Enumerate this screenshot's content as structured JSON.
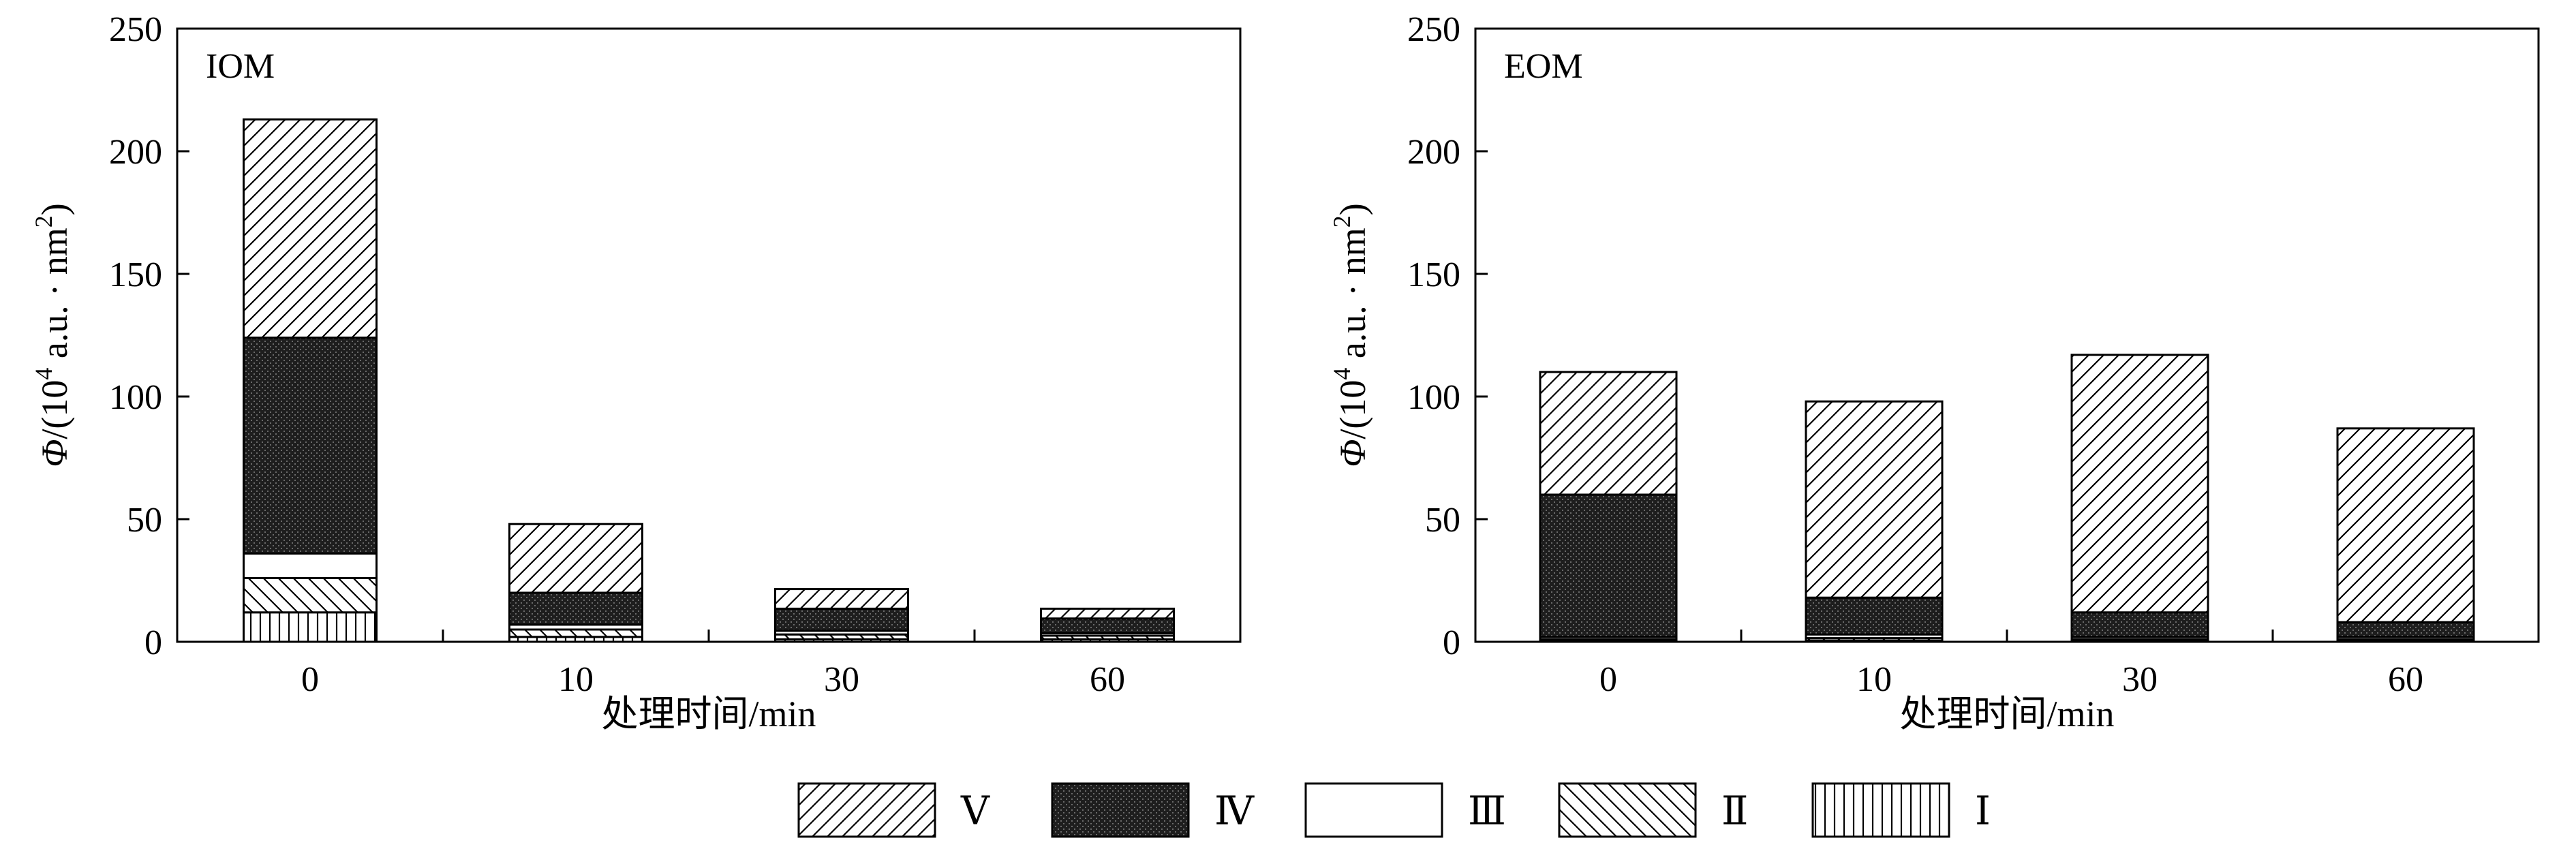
{
  "chart_data": [
    {
      "type": "bar",
      "stacked": true,
      "panel_label": "IOM",
      "categories": [
        "0",
        "10",
        "30",
        "60"
      ],
      "xlabel": "处理时间/min",
      "ylabel_parts": {
        "symbol": "Φ",
        "pre": "/(10",
        "exp1": "4",
        "mid": " a.u. · nm",
        "exp2": "2",
        "post": ")"
      },
      "ylim": [
        0,
        250
      ],
      "yticks": [
        0,
        50,
        100,
        150,
        200,
        250
      ],
      "series": [
        {
          "name": "Ⅰ",
          "values": [
            12,
            2,
            1,
            1
          ]
        },
        {
          "name": "Ⅱ",
          "values": [
            14,
            3,
            2,
            1.5
          ]
        },
        {
          "name": "Ⅲ",
          "values": [
            10,
            2,
            1.5,
            1
          ]
        },
        {
          "name": "Ⅳ",
          "values": [
            88,
            13,
            9,
            6
          ]
        },
        {
          "name": "Ⅴ",
          "values": [
            89,
            28,
            8,
            4
          ]
        }
      ]
    },
    {
      "type": "bar",
      "stacked": true,
      "panel_label": "EOM",
      "categories": [
        "0",
        "10",
        "30",
        "60"
      ],
      "xlabel": "处理时间/min",
      "ylabel_parts": {
        "symbol": "Φ",
        "pre": "/(10",
        "exp1": "4",
        "mid": " a.u. · nm",
        "exp2": "2",
        "post": ")"
      },
      "ylim": [
        0,
        250
      ],
      "yticks": [
        0,
        50,
        100,
        150,
        200,
        250
      ],
      "series": [
        {
          "name": "Ⅰ",
          "values": [
            0.5,
            0.5,
            0.5,
            0.5
          ]
        },
        {
          "name": "Ⅱ",
          "values": [
            0.5,
            1,
            0.5,
            0.5
          ]
        },
        {
          "name": "Ⅲ",
          "values": [
            1,
            1.5,
            1,
            1
          ]
        },
        {
          "name": "Ⅳ",
          "values": [
            58,
            15,
            10,
            6
          ]
        },
        {
          "name": "Ⅴ",
          "values": [
            50,
            80,
            105,
            79
          ]
        }
      ]
    }
  ],
  "legend": {
    "order": [
      "Ⅴ",
      "Ⅳ",
      "Ⅲ",
      "Ⅱ",
      "Ⅰ"
    ],
    "patterns": {
      "Ⅴ": "diagonal-up",
      "Ⅳ": "dark-crosshatch",
      "Ⅲ": "blank",
      "Ⅱ": "diagonal-down",
      "Ⅰ": "vertical-lines"
    }
  },
  "colors": {
    "ink": "#000000",
    "background": "#ffffff",
    "dark_fill": "#1e1e1e"
  }
}
